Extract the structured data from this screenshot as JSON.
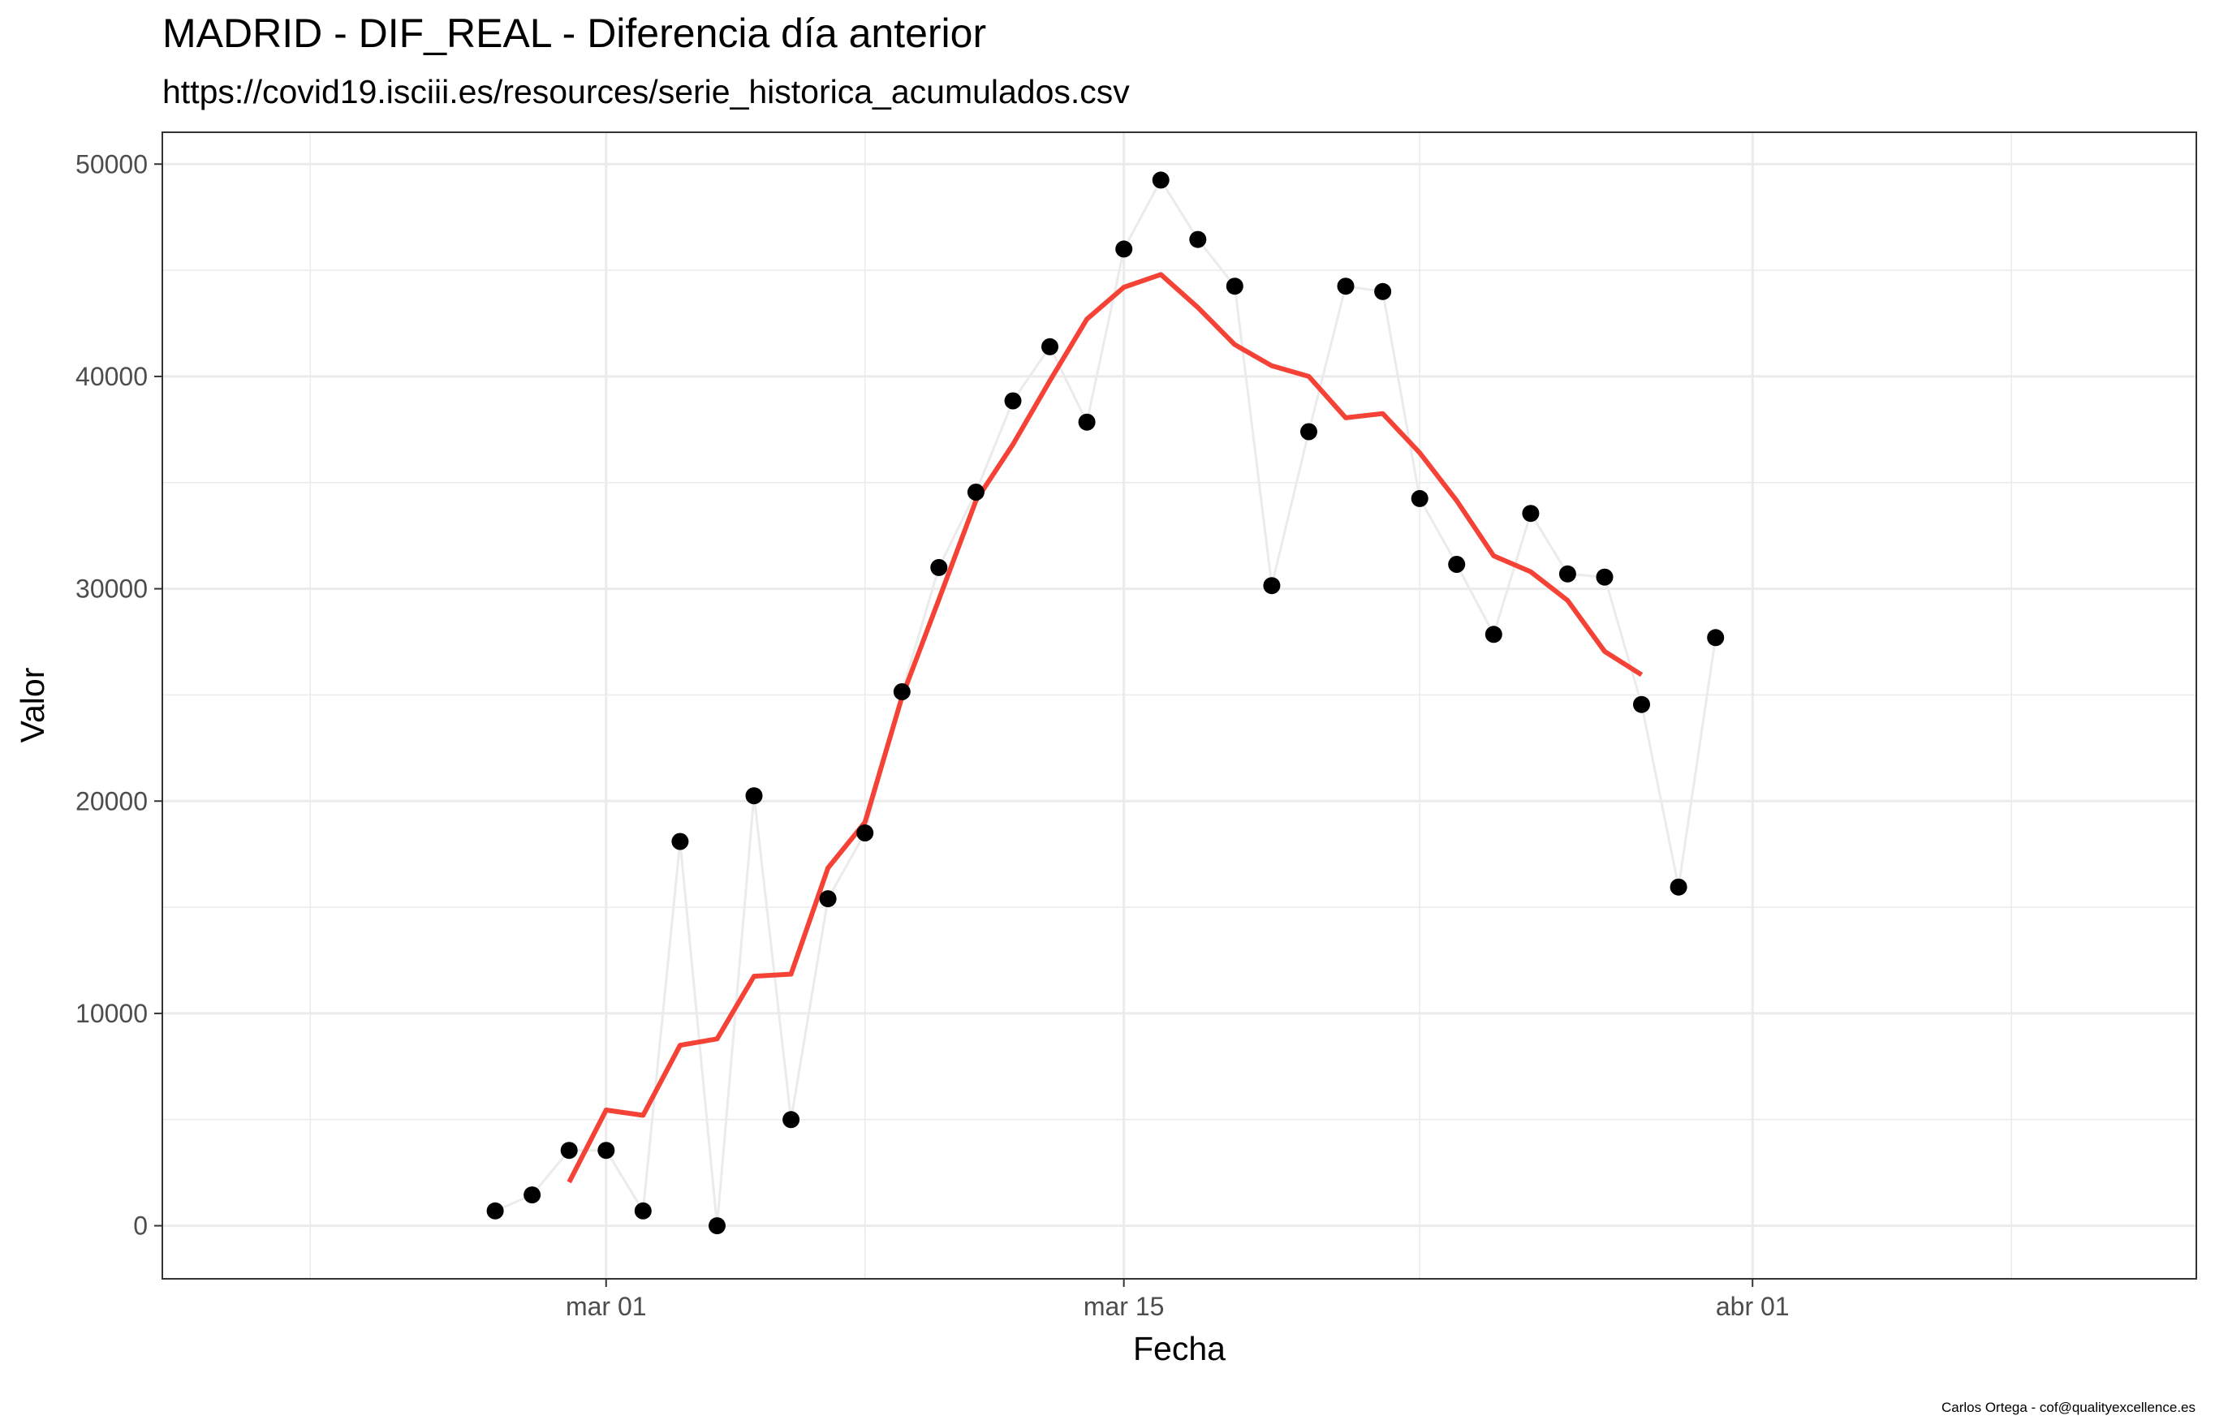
{
  "chart_data": {
    "type": "line",
    "title": "MADRID - DIF_REAL - Diferencia día anterior",
    "subtitle": "https://covid19.isciii.es/resources/serie_historica_acumulados.csv",
    "xlabel": "Fecha",
    "ylabel": "Valor",
    "caption": "Carlos Ortega - cof@qualityexcellence.es",
    "x_domain": [
      "2020-02-18",
      "2020-04-13"
    ],
    "ylim": [
      -2500,
      51500
    ],
    "x_ticks": [
      {
        "date": "2020-03-01",
        "label": "mar 01"
      },
      {
        "date": "2020-03-15",
        "label": "mar 15"
      },
      {
        "date": "2020-04-01",
        "label": "abr 01"
      }
    ],
    "x_minor_ticks": [
      "2020-02-22",
      "2020-03-08",
      "2020-03-23",
      "2020-04-08"
    ],
    "y_ticks": [
      0,
      10000,
      20000,
      30000,
      40000,
      50000
    ],
    "y_tick_labels": [
      "0",
      "10000",
      "20000",
      "30000",
      "40000",
      "50000"
    ],
    "y_minor_ticks": [
      5000,
      15000,
      25000,
      35000,
      45000
    ],
    "grid": true,
    "series": [
      {
        "name": "",
        "kind": "points-with-line",
        "color": "#000000",
        "line_color": "#ebebeb",
        "points": [
          {
            "x": "2020-02-27",
            "y": 700
          },
          {
            "x": "2020-02-28",
            "y": 1450
          },
          {
            "x": "2020-02-29",
            "y": 3550
          },
          {
            "x": "2020-03-01",
            "y": 3550
          },
          {
            "x": "2020-03-02",
            "y": 700
          },
          {
            "x": "2020-03-03",
            "y": 18100
          },
          {
            "x": "2020-03-04",
            "y": 0
          },
          {
            "x": "2020-03-05",
            "y": 20250
          },
          {
            "x": "2020-03-06",
            "y": 5000
          },
          {
            "x": "2020-03-07",
            "y": 15400
          },
          {
            "x": "2020-03-08",
            "y": 18500
          },
          {
            "x": "2020-03-09",
            "y": 25150
          },
          {
            "x": "2020-03-10",
            "y": 31000
          },
          {
            "x": "2020-03-11",
            "y": 34550
          },
          {
            "x": "2020-03-12",
            "y": 38850
          },
          {
            "x": "2020-03-13",
            "y": 41400
          },
          {
            "x": "2020-03-14",
            "y": 37850
          },
          {
            "x": "2020-03-15",
            "y": 46000
          },
          {
            "x": "2020-03-16",
            "y": 49250
          },
          {
            "x": "2020-03-17",
            "y": 46450
          },
          {
            "x": "2020-03-18",
            "y": 44250
          },
          {
            "x": "2020-03-19",
            "y": 30150
          },
          {
            "x": "2020-03-20",
            "y": 37400
          },
          {
            "x": "2020-03-21",
            "y": 44250
          },
          {
            "x": "2020-03-22",
            "y": 44000
          },
          {
            "x": "2020-03-23",
            "y": 34250
          },
          {
            "x": "2020-03-24",
            "y": 31150
          },
          {
            "x": "2020-03-25",
            "y": 27850
          },
          {
            "x": "2020-03-26",
            "y": 33550
          },
          {
            "x": "2020-03-27",
            "y": 30700
          },
          {
            "x": "2020-03-28",
            "y": 30550
          },
          {
            "x": "2020-03-29",
            "y": 24550
          },
          {
            "x": "2020-03-30",
            "y": 15950
          },
          {
            "x": "2020-03-31",
            "y": 27700
          }
        ]
      },
      {
        "name": "",
        "kind": "line",
        "color": "#f44336",
        "points": [
          {
            "x": "2020-02-29",
            "y": 2050
          },
          {
            "x": "2020-03-01",
            "y": 5450
          },
          {
            "x": "2020-03-02",
            "y": 5200
          },
          {
            "x": "2020-03-03",
            "y": 8500
          },
          {
            "x": "2020-03-04",
            "y": 8800
          },
          {
            "x": "2020-03-05",
            "y": 11750
          },
          {
            "x": "2020-03-06",
            "y": 11850
          },
          {
            "x": "2020-03-07",
            "y": 16850
          },
          {
            "x": "2020-03-08",
            "y": 19000
          },
          {
            "x": "2020-03-09",
            "y": 24900
          },
          {
            "x": "2020-03-10",
            "y": 29500
          },
          {
            "x": "2020-03-11",
            "y": 34150
          },
          {
            "x": "2020-03-12",
            "y": 36800
          },
          {
            "x": "2020-03-13",
            "y": 39800
          },
          {
            "x": "2020-03-14",
            "y": 42700
          },
          {
            "x": "2020-03-15",
            "y": 44200
          },
          {
            "x": "2020-03-16",
            "y": 44800
          },
          {
            "x": "2020-03-17",
            "y": 43250
          },
          {
            "x": "2020-03-18",
            "y": 41500
          },
          {
            "x": "2020-03-19",
            "y": 40500
          },
          {
            "x": "2020-03-20",
            "y": 40000
          },
          {
            "x": "2020-03-21",
            "y": 38050
          },
          {
            "x": "2020-03-22",
            "y": 38250
          },
          {
            "x": "2020-03-23",
            "y": 36400
          },
          {
            "x": "2020-03-24",
            "y": 34150
          },
          {
            "x": "2020-03-25",
            "y": 31550
          },
          {
            "x": "2020-03-26",
            "y": 30800
          },
          {
            "x": "2020-03-27",
            "y": 29450
          },
          {
            "x": "2020-03-28",
            "y": 27050
          },
          {
            "x": "2020-03-29",
            "y": 25950
          }
        ]
      }
    ]
  }
}
